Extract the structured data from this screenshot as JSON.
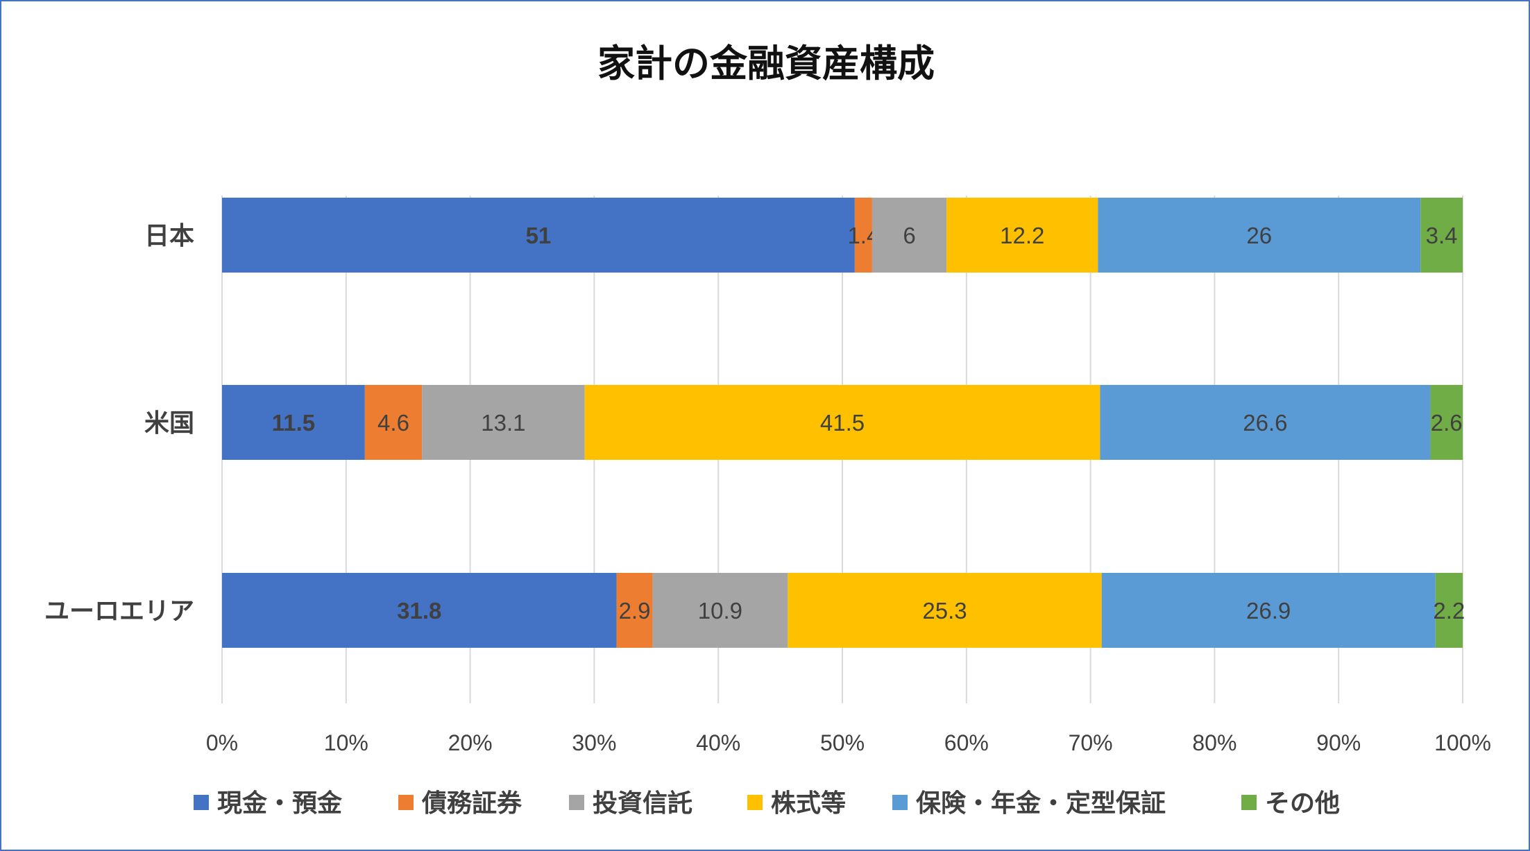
{
  "chart_data": {
    "type": "bar",
    "orientation": "horizontal",
    "stacking": "percent",
    "title": "家計の金融資産構成",
    "categories": [
      "日本",
      "米国",
      "ユーロエリア"
    ],
    "series": [
      {
        "name": "現金・預金",
        "color": "#4472c4",
        "values": [
          51,
          11.5,
          31.8
        ],
        "labels": [
          "51",
          "11.5",
          "31.8"
        ]
      },
      {
        "name": "債務証券",
        "color": "#ed7d31",
        "values": [
          1.4,
          4.6,
          2.9
        ],
        "labels": [
          "1.4",
          "4.6",
          "2.9"
        ]
      },
      {
        "name": "投資信託",
        "color": "#a5a5a5",
        "values": [
          6,
          13.1,
          10.9
        ],
        "labels": [
          "6",
          "13.1",
          "10.9"
        ]
      },
      {
        "name": "株式等",
        "color": "#ffc000",
        "values": [
          12.2,
          41.5,
          25.3
        ],
        "labels": [
          "12.2",
          "41.5",
          "25.3"
        ]
      },
      {
        "name": "保険・年金・定型保証",
        "color": "#5b9bd5",
        "values": [
          26,
          26.6,
          26.9
        ],
        "labels": [
          "26",
          "26.6",
          "26.9"
        ]
      },
      {
        "name": "その他",
        "color": "#70ad47",
        "values": [
          3.4,
          2.6,
          2.2
        ],
        "labels": [
          "3.4",
          "2.6",
          "2.2"
        ]
      }
    ],
    "x_ticks": [
      "0%",
      "10%",
      "20%",
      "30%",
      "40%",
      "50%",
      "60%",
      "70%",
      "80%",
      "90%",
      "100%"
    ],
    "xlim": [
      0,
      100
    ],
    "grid": true,
    "legend": "bottom"
  }
}
